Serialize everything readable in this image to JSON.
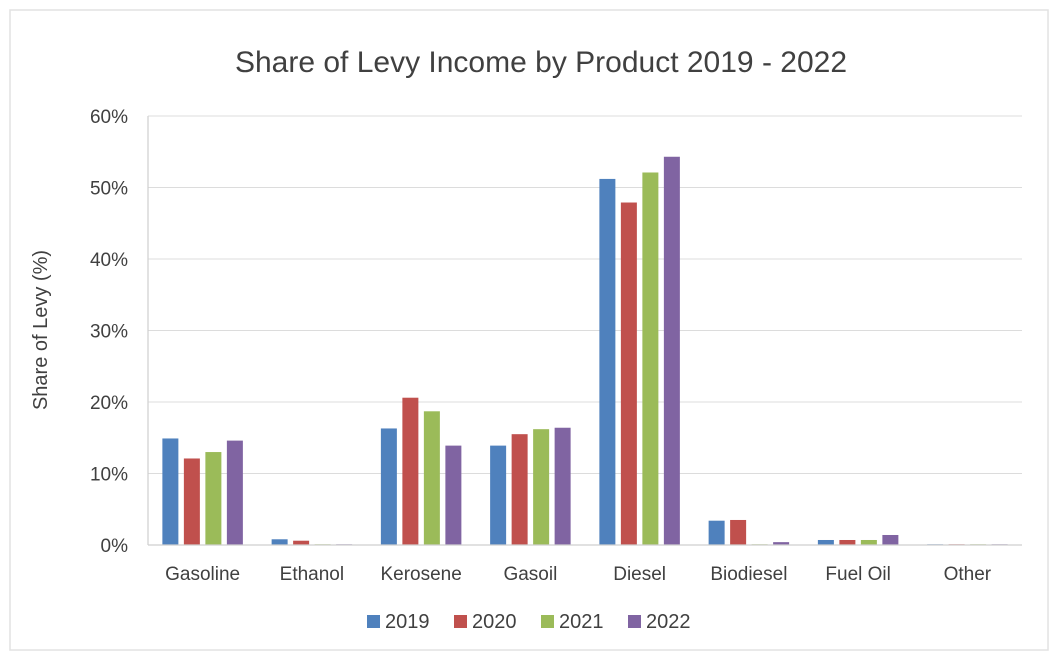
{
  "chart_data": {
    "type": "bar",
    "title": "Share of Levy Income by Product 2019 - 2022",
    "xlabel": "",
    "ylabel": "Share of Levy (%)",
    "ylim": [
      0,
      0.6
    ],
    "yticks": [
      "0%",
      "10%",
      "20%",
      "30%",
      "40%",
      "50%",
      "60%"
    ],
    "grid": true,
    "legend_position": "bottom",
    "categories": [
      "Gasoline",
      "Ethanol",
      "Kerosene",
      "Gasoil",
      "Diesel",
      "Biodiesel",
      "Fuel Oil",
      "Other"
    ],
    "series": [
      {
        "name": "2019",
        "color": "#4f81bd",
        "values": [
          0.149,
          0.008,
          0.163,
          0.139,
          0.512,
          0.034,
          0.007,
          0.001
        ]
      },
      {
        "name": "2020",
        "color": "#c0504d",
        "values": [
          0.121,
          0.006,
          0.206,
          0.155,
          0.479,
          0.035,
          0.007,
          0.001
        ]
      },
      {
        "name": "2021",
        "color": "#9bbb59",
        "values": [
          0.13,
          0.001,
          0.187,
          0.162,
          0.521,
          0.001,
          0.007,
          0.001
        ]
      },
      {
        "name": "2022",
        "color": "#8064a2",
        "values": [
          0.146,
          0.001,
          0.139,
          0.164,
          0.543,
          0.004,
          0.014,
          0.001
        ]
      }
    ]
  }
}
